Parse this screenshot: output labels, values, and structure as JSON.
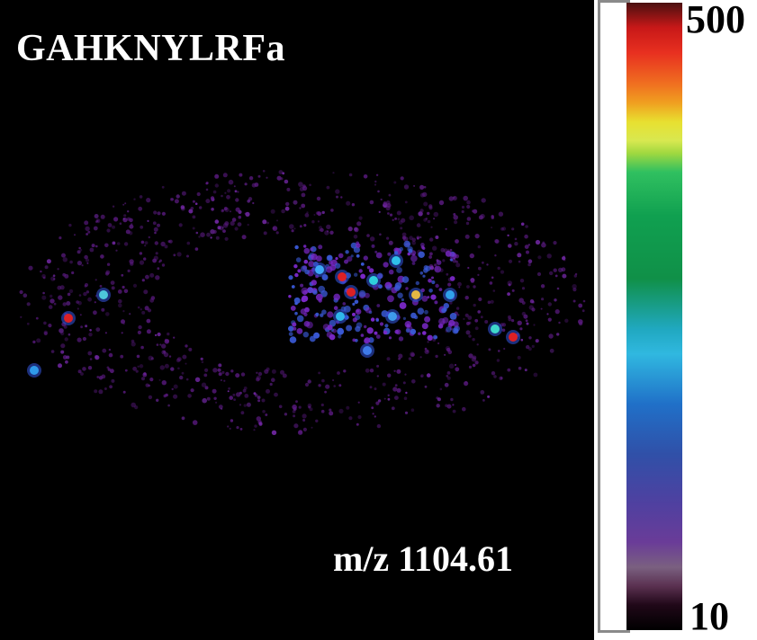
{
  "image": {
    "peptide": "GAHKNYLRFa",
    "mz_label": "m/z 1104.61"
  },
  "colorbar": {
    "max_label": "500",
    "min_label": "10"
  },
  "colors": {
    "background": "#000000",
    "low": "#6a1f9e",
    "mid": "#1aa0e8",
    "high": "#e82020"
  }
}
